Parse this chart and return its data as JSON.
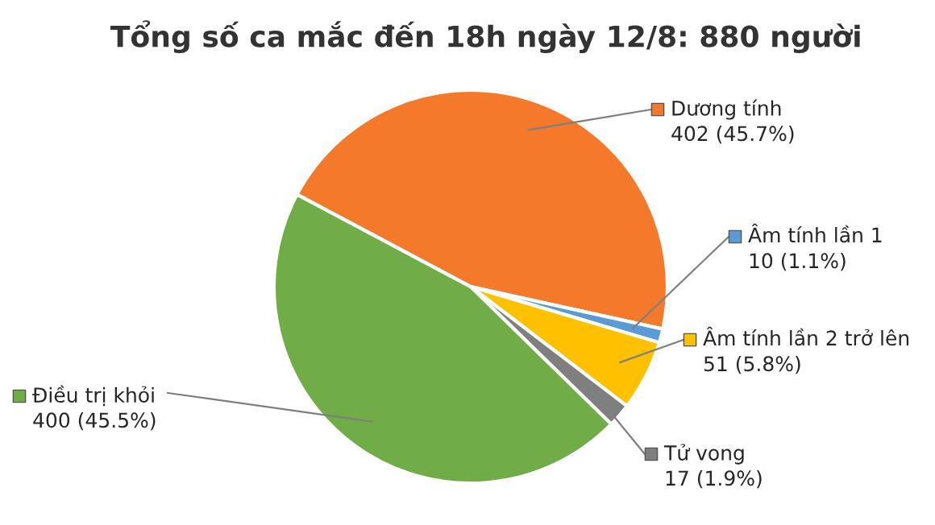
{
  "chart_data": {
    "type": "pie",
    "title": "Tổng số ca mắc đến 18h ngày 12/8: 880 người",
    "categories": [
      "Dương tính",
      "Âm tính lần 1",
      "Âm tính lần 2 trở lên",
      "Tử vong",
      "Điều trị khỏi"
    ],
    "values": [
      402,
      10,
      51,
      17,
      400
    ],
    "value_labels": [
      "402 (45.7%)",
      "10 (1.1%)",
      "51 (5.8%)",
      "17 (1.9%)",
      "400 (45.5%)"
    ],
    "colors": [
      "#f4792b",
      "#5b9bd5",
      "#ffc000",
      "#7f7f7f",
      "#70ad47"
    ],
    "legend": "right"
  }
}
